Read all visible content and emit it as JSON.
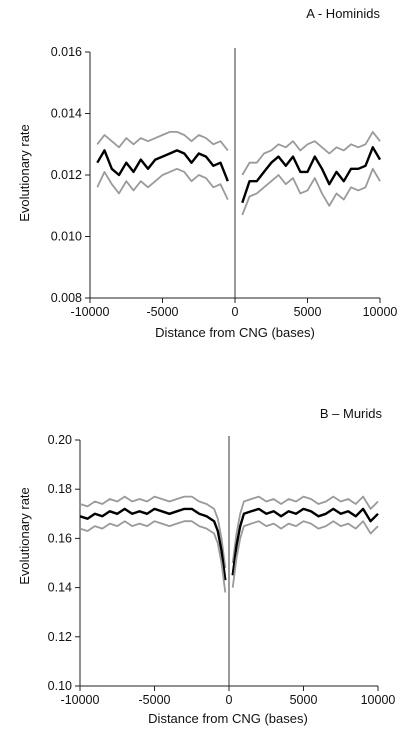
{
  "chart_data": [
    {
      "type": "line",
      "title": "A - Hominids",
      "xlabel": "Distance from CNG (bases)",
      "ylabel": "Evolutionary rate",
      "xlim": [
        -10000,
        10000
      ],
      "ylim": [
        0.008,
        0.016
      ],
      "xticks": [
        -10000,
        -5000,
        0,
        5000,
        10000
      ],
      "xtick_labels": [
        "-10000",
        "-5000",
        "0",
        "5000",
        "10000"
      ],
      "yticks": [
        0.008,
        0.01,
        0.012,
        0.014,
        0.016
      ],
      "ytick_labels": [
        "0.008",
        "0.010",
        "0.012",
        "0.014",
        "0.016"
      ],
      "grid": false,
      "vertical_line_at_x": 0,
      "series": [
        {
          "role": "upper",
          "color": "#9a9a9a",
          "left": {
            "x": [
              -9500,
              -9000,
              -8500,
              -8000,
              -7500,
              -7000,
              -6500,
              -6000,
              -5500,
              -5000,
              -4500,
              -4000,
              -3500,
              -3000,
              -2500,
              -2000,
              -1500,
              -1000,
              -500
            ],
            "y": [
              0.013,
              0.0133,
              0.0131,
              0.0129,
              0.0132,
              0.013,
              0.0132,
              0.0131,
              0.0132,
              0.0133,
              0.0134,
              0.0134,
              0.0133,
              0.0131,
              0.0133,
              0.0132,
              0.013,
              0.0131,
              0.0128
            ]
          },
          "right": {
            "x": [
              500,
              1000,
              1500,
              2000,
              2500,
              3000,
              3500,
              4000,
              4500,
              5000,
              5500,
              6000,
              6500,
              7000,
              7500,
              8000,
              8500,
              9000,
              9500,
              10000
            ],
            "y": [
              0.012,
              0.0124,
              0.0124,
              0.0127,
              0.0128,
              0.013,
              0.0129,
              0.0131,
              0.0128,
              0.013,
              0.0131,
              0.0129,
              0.0127,
              0.0129,
              0.0128,
              0.013,
              0.0129,
              0.013,
              0.0134,
              0.0131
            ]
          }
        },
        {
          "role": "mean",
          "color": "#000000",
          "left": {
            "x": [
              -9500,
              -9000,
              -8500,
              -8000,
              -7500,
              -7000,
              -6500,
              -6000,
              -5500,
              -5000,
              -4500,
              -4000,
              -3500,
              -3000,
              -2500,
              -2000,
              -1500,
              -1000,
              -500
            ],
            "y": [
              0.0124,
              0.0128,
              0.0122,
              0.012,
              0.0124,
              0.0121,
              0.0125,
              0.0122,
              0.0125,
              0.0126,
              0.0127,
              0.0128,
              0.0127,
              0.0124,
              0.0127,
              0.0126,
              0.0123,
              0.0124,
              0.0118
            ]
          },
          "right": {
            "x": [
              500,
              1000,
              1500,
              2000,
              2500,
              3000,
              3500,
              4000,
              4500,
              5000,
              5500,
              6000,
              6500,
              7000,
              7500,
              8000,
              8500,
              9000,
              9500,
              10000
            ],
            "y": [
              0.0111,
              0.0118,
              0.0118,
              0.0121,
              0.0124,
              0.0126,
              0.0123,
              0.0126,
              0.0121,
              0.0121,
              0.0126,
              0.0122,
              0.0117,
              0.0121,
              0.0118,
              0.0122,
              0.0122,
              0.0123,
              0.0129,
              0.0125
            ]
          }
        },
        {
          "role": "lower",
          "color": "#9a9a9a",
          "left": {
            "x": [
              -9500,
              -9000,
              -8500,
              -8000,
              -7500,
              -7000,
              -6500,
              -6000,
              -5500,
              -5000,
              -4500,
              -4000,
              -3500,
              -3000,
              -2500,
              -2000,
              -1500,
              -1000,
              -500
            ],
            "y": [
              0.0116,
              0.0121,
              0.0117,
              0.0114,
              0.0118,
              0.0115,
              0.0118,
              0.0116,
              0.0118,
              0.012,
              0.0121,
              0.0122,
              0.0121,
              0.0118,
              0.012,
              0.0119,
              0.0116,
              0.0117,
              0.0112
            ]
          },
          "right": {
            "x": [
              500,
              1000,
              1500,
              2000,
              2500,
              3000,
              3500,
              4000,
              4500,
              5000,
              5500,
              6000,
              6500,
              7000,
              7500,
              8000,
              8500,
              9000,
              9500,
              10000
            ],
            "y": [
              0.0107,
              0.0113,
              0.0114,
              0.0116,
              0.0118,
              0.012,
              0.0117,
              0.0119,
              0.0114,
              0.0115,
              0.0119,
              0.0114,
              0.011,
              0.0114,
              0.0112,
              0.0116,
              0.0115,
              0.0116,
              0.0122,
              0.0118
            ]
          }
        }
      ]
    },
    {
      "type": "line",
      "title": "B – Murids",
      "xlabel": "Distance from CNG (bases)",
      "ylabel": "Evolutionary rate",
      "xlim": [
        -10000,
        10000
      ],
      "ylim": [
        0.1,
        0.2
      ],
      "xticks": [
        -10000,
        -5000,
        0,
        5000,
        10000
      ],
      "xtick_labels": [
        "-10000",
        "-5000",
        "0",
        "5000",
        "10000"
      ],
      "yticks": [
        0.1,
        0.12,
        0.14,
        0.16,
        0.18,
        0.2
      ],
      "ytick_labels": [
        "0.10",
        "0.12",
        "0.14",
        "0.16",
        "0.18",
        "0.20"
      ],
      "grid": false,
      "vertical_line_at_x": 0,
      "series": [
        {
          "role": "upper",
          "color": "#9a9a9a",
          "left": {
            "x": [
              -10000,
              -9500,
              -9000,
              -8500,
              -8000,
              -7500,
              -7000,
              -6500,
              -6000,
              -5500,
              -5000,
              -4500,
              -4000,
              -3500,
              -3000,
              -2500,
              -2000,
              -1500,
              -1000,
              -750,
              -500,
              -250
            ],
            "y": [
              0.174,
              0.173,
              0.175,
              0.174,
              0.176,
              0.175,
              0.177,
              0.175,
              0.176,
              0.175,
              0.177,
              0.176,
              0.175,
              0.176,
              0.177,
              0.177,
              0.175,
              0.174,
              0.172,
              0.168,
              0.16,
              0.148
            ]
          },
          "right": {
            "x": [
              250,
              500,
              750,
              1000,
              1500,
              2000,
              2500,
              3000,
              3500,
              4000,
              4500,
              5000,
              5500,
              6000,
              6500,
              7000,
              7500,
              8000,
              8500,
              9000,
              9500,
              10000
            ],
            "y": [
              0.15,
              0.162,
              0.17,
              0.175,
              0.176,
              0.177,
              0.175,
              0.176,
              0.174,
              0.176,
              0.175,
              0.177,
              0.176,
              0.174,
              0.175,
              0.177,
              0.175,
              0.176,
              0.174,
              0.177,
              0.172,
              0.175
            ]
          }
        },
        {
          "role": "mean",
          "color": "#000000",
          "left": {
            "x": [
              -10000,
              -9500,
              -9000,
              -8500,
              -8000,
              -7500,
              -7000,
              -6500,
              -6000,
              -5500,
              -5000,
              -4500,
              -4000,
              -3500,
              -3000,
              -2500,
              -2000,
              -1500,
              -1000,
              -750,
              -500,
              -250
            ],
            "y": [
              0.169,
              0.168,
              0.17,
              0.169,
              0.171,
              0.17,
              0.172,
              0.17,
              0.171,
              0.17,
              0.172,
              0.171,
              0.17,
              0.171,
              0.172,
              0.172,
              0.17,
              0.169,
              0.167,
              0.163,
              0.155,
              0.143
            ]
          },
          "right": {
            "x": [
              250,
              500,
              750,
              1000,
              1500,
              2000,
              2500,
              3000,
              3500,
              4000,
              4500,
              5000,
              5500,
              6000,
              6500,
              7000,
              7500,
              8000,
              8500,
              9000,
              9500,
              10000
            ],
            "y": [
              0.145,
              0.157,
              0.165,
              0.17,
              0.171,
              0.172,
              0.17,
              0.171,
              0.169,
              0.171,
              0.17,
              0.172,
              0.171,
              0.169,
              0.17,
              0.172,
              0.17,
              0.171,
              0.169,
              0.172,
              0.167,
              0.17
            ]
          }
        },
        {
          "role": "lower",
          "color": "#9a9a9a",
          "left": {
            "x": [
              -10000,
              -9500,
              -9000,
              -8500,
              -8000,
              -7500,
              -7000,
              -6500,
              -6000,
              -5500,
              -5000,
              -4500,
              -4000,
              -3500,
              -3000,
              -2500,
              -2000,
              -1500,
              -1000,
              -750,
              -500,
              -250
            ],
            "y": [
              0.164,
              0.163,
              0.165,
              0.164,
              0.166,
              0.165,
              0.167,
              0.165,
              0.166,
              0.165,
              0.167,
              0.166,
              0.165,
              0.166,
              0.167,
              0.167,
              0.165,
              0.164,
              0.162,
              0.158,
              0.15,
              0.138
            ]
          },
          "right": {
            "x": [
              250,
              500,
              750,
              1000,
              1500,
              2000,
              2500,
              3000,
              3500,
              4000,
              4500,
              5000,
              5500,
              6000,
              6500,
              7000,
              7500,
              8000,
              8500,
              9000,
              9500,
              10000
            ],
            "y": [
              0.14,
              0.152,
              0.16,
              0.165,
              0.166,
              0.167,
              0.165,
              0.166,
              0.164,
              0.166,
              0.165,
              0.167,
              0.166,
              0.164,
              0.165,
              0.167,
              0.165,
              0.166,
              0.164,
              0.167,
              0.162,
              0.165
            ]
          }
        }
      ]
    }
  ]
}
